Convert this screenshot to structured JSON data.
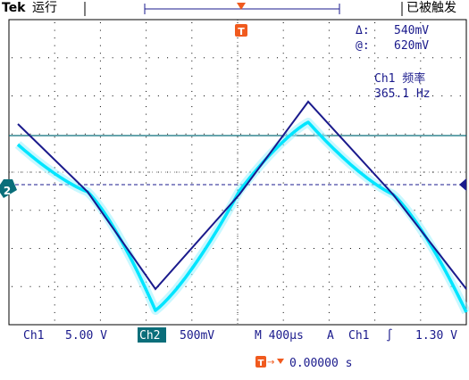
{
  "brand": "Tek",
  "run_state": "运行",
  "trigger_status": "已被触发",
  "trigger_marker": "T",
  "ch2_marker": "2",
  "cursor": {
    "delta_symbol": "Δ:",
    "delta_value": "540mV",
    "at_symbol": "@:",
    "at_value": "620mV"
  },
  "measurement": {
    "label": "Ch1 频率",
    "value": "365.1 Hz"
  },
  "bottom": {
    "ch1_label": "Ch1",
    "ch1_scale": "5.00 V",
    "ch2_label": "Ch2",
    "ch2_scale": "500mV",
    "timebase": "M 400µs",
    "trig_mode": "A",
    "trig_source": "Ch1",
    "trig_slope": "∫",
    "trig_level": "1.30 V",
    "trig_offset": "0.00000 s"
  },
  "colors": {
    "ch1": "#1a1a8c",
    "ch2": "#00e5ff",
    "grid": "#000000",
    "cursor_line": "#0a6e7a",
    "trigger": "#f05a1e",
    "badge": "#0a6e7a"
  }
}
